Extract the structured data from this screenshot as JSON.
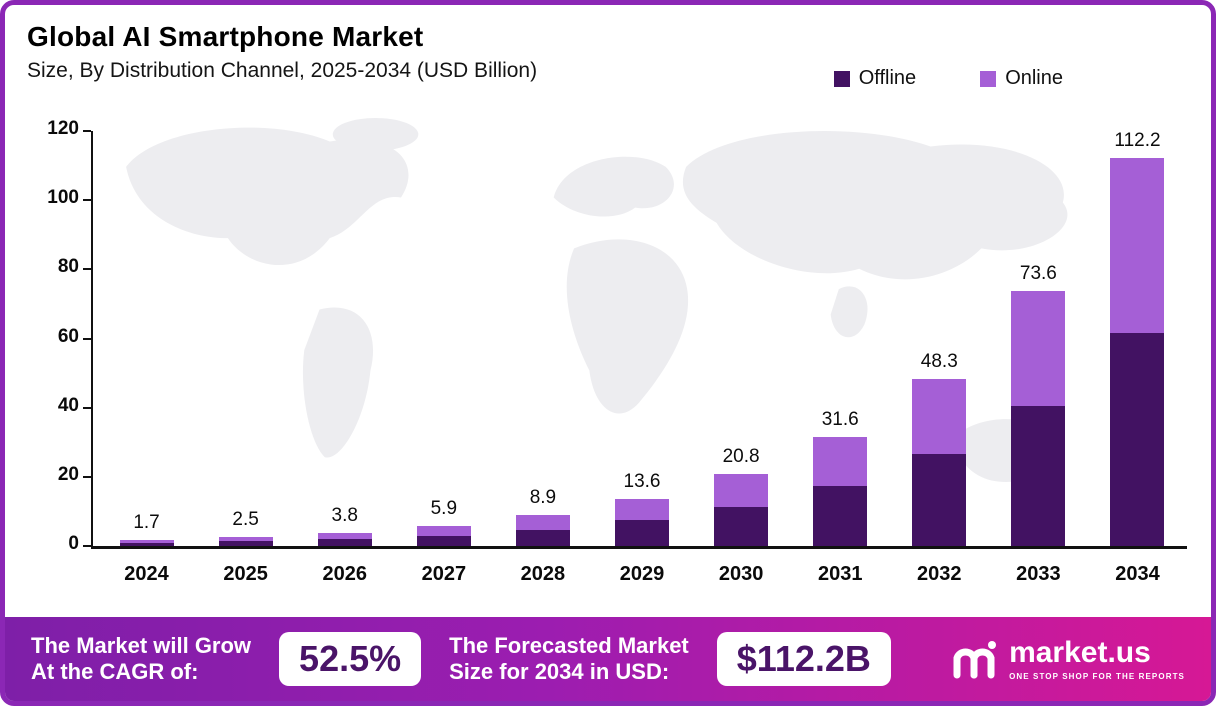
{
  "header": {
    "title": "Global AI Smartphone Market",
    "subtitle": "Size, By Distribution Channel, 2025-2034 (USD Billion)"
  },
  "legend": [
    {
      "label": "Offline",
      "color": "#421262"
    },
    {
      "label": "Online",
      "color": "#a55fd6"
    }
  ],
  "chart_data": {
    "type": "bar",
    "stacked": true,
    "title": "Global AI Smartphone Market Size, By Distribution Channel, 2025-2034 (USD Billion)",
    "categories": [
      "2024",
      "2025",
      "2026",
      "2027",
      "2028",
      "2029",
      "2030",
      "2031",
      "2032",
      "2033",
      "2034"
    ],
    "series": [
      {
        "name": "Offline",
        "color": "#421262",
        "values": [
          0.9,
          1.4,
          2.1,
          3.0,
          4.5,
          7.5,
          11.4,
          17.4,
          26.6,
          40.5,
          61.7
        ]
      },
      {
        "name": "Online",
        "color": "#a55fd6",
        "values": [
          0.8,
          1.1,
          1.7,
          2.9,
          4.4,
          6.1,
          9.4,
          14.2,
          21.7,
          33.1,
          50.5
        ]
      }
    ],
    "totals": [
      1.7,
      2.5,
      3.8,
      5.9,
      8.9,
      13.6,
      20.8,
      31.6,
      48.3,
      73.6,
      112.2
    ],
    "xlabel": "",
    "ylabel": "",
    "yticks": [
      0,
      20,
      40,
      60,
      80,
      100,
      120
    ],
    "ylim": [
      0,
      120
    ],
    "grid": false,
    "legend_position": "top-right"
  },
  "footer": {
    "cagr_line1": "The Market will Grow",
    "cagr_line2": "At the CAGR of:",
    "cagr_value": "52.5%",
    "forecast_line1": "The Forecasted Market",
    "forecast_line2": "Size for 2034 in USD:",
    "forecast_value": "$112.2B",
    "brand": "market.us",
    "brand_tagline": "ONE STOP SHOP FOR THE REPORTS"
  }
}
